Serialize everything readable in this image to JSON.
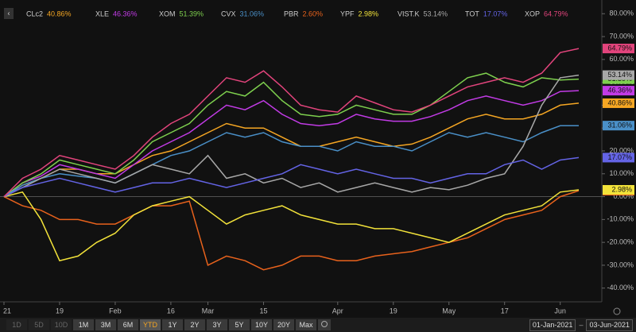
{
  "chart_data": {
    "type": "line",
    "categories": [
      "21",
      null,
      null,
      "19",
      null,
      null,
      "Feb",
      null,
      null,
      "16",
      null,
      "Mar",
      null,
      null,
      "15",
      null,
      null,
      null,
      "Apr",
      null,
      null,
      "19",
      null,
      null,
      "May",
      null,
      null,
      "17",
      null,
      null,
      "Jun",
      null
    ],
    "ylim": [
      -46,
      86
    ],
    "yticks": [
      {
        "value": 80,
        "label": "80.00%"
      },
      {
        "value": 70,
        "label": "70.00%"
      },
      {
        "value": 60,
        "label": "60.00%"
      },
      {
        "value": 50,
        "label": "50.00%"
      },
      {
        "value": 40,
        "label": "40.00%"
      },
      {
        "value": 30,
        "label": "30.00%"
      },
      {
        "value": 20,
        "label": "20.00%"
      },
      {
        "value": 10,
        "label": "10.00%"
      },
      {
        "value": 0,
        "label": "0.00%"
      },
      {
        "value": -10,
        "label": "-10.00%"
      },
      {
        "value": -20,
        "label": "-20.00%"
      },
      {
        "value": -30,
        "label": "-30.00%"
      },
      {
        "value": -40,
        "label": "-40.00%"
      }
    ],
    "series": [
      {
        "name": "CLc2",
        "color": "#f5a623",
        "values": [
          0,
          5,
          8,
          12,
          12,
          10,
          10,
          14,
          18,
          20,
          24,
          28,
          32,
          30,
          30,
          26,
          22,
          22,
          24,
          26,
          24,
          22,
          23,
          26,
          30,
          34,
          36,
          34,
          34,
          36,
          40,
          40.86
        ],
        "value_labels": [
          null,
          null,
          null,
          null,
          null,
          null,
          null,
          null,
          null,
          null,
          null,
          null,
          null,
          null,
          null,
          null,
          null,
          null,
          null,
          null,
          null,
          null,
          null,
          null,
          null,
          null,
          null,
          null,
          null,
          null,
          null,
          "40.86%"
        ]
      },
      {
        "name": "XLE",
        "color": "#c23be6",
        "values": [
          0,
          6,
          9,
          14,
          12,
          10,
          8,
          14,
          20,
          24,
          28,
          34,
          40,
          38,
          42,
          36,
          32,
          31,
          32,
          36,
          34,
          33,
          33,
          35,
          38,
          42,
          44,
          42,
          40,
          42,
          46,
          46.36
        ],
        "value_labels": [
          null,
          null,
          null,
          null,
          null,
          null,
          null,
          null,
          null,
          null,
          null,
          null,
          null,
          null,
          null,
          null,
          null,
          null,
          null,
          null,
          null,
          null,
          null,
          null,
          null,
          null,
          null,
          null,
          null,
          null,
          null,
          "46.36%"
        ]
      },
      {
        "name": "XOM",
        "color": "#7ed04e",
        "values": [
          0,
          6,
          10,
          16,
          14,
          12,
          10,
          16,
          24,
          28,
          32,
          40,
          46,
          44,
          50,
          42,
          36,
          35,
          36,
          40,
          38,
          36,
          36,
          40,
          46,
          52,
          54,
          50,
          48,
          52,
          51,
          51.39
        ],
        "value_labels": [
          null,
          null,
          null,
          null,
          null,
          null,
          null,
          null,
          null,
          null,
          null,
          null,
          null,
          null,
          null,
          null,
          null,
          null,
          null,
          null,
          null,
          null,
          null,
          null,
          null,
          null,
          null,
          null,
          null,
          null,
          null,
          "51.39%"
        ]
      },
      {
        "name": "CVX",
        "color": "#4a90c8",
        "values": [
          0,
          5,
          8,
          10,
          9,
          8,
          6,
          10,
          14,
          18,
          20,
          24,
          28,
          26,
          28,
          24,
          22,
          22,
          20,
          24,
          22,
          22,
          20,
          24,
          28,
          26,
          28,
          26,
          24,
          28,
          31,
          31.06
        ],
        "value_labels": [
          null,
          null,
          null,
          null,
          null,
          null,
          null,
          null,
          null,
          null,
          null,
          null,
          null,
          null,
          null,
          null,
          null,
          null,
          null,
          null,
          null,
          null,
          null,
          null,
          null,
          null,
          null,
          null,
          null,
          null,
          null,
          "31.06%"
        ]
      },
      {
        "name": "PBR",
        "color": "#e8621c",
        "values": [
          0,
          -4,
          -6,
          -10,
          -10,
          -12,
          -12,
          -8,
          -4,
          -4,
          -2,
          -30,
          -26,
          -28,
          -32,
          -30,
          -26,
          -26,
          -28,
          -28,
          -26,
          -25,
          -24,
          -22,
          -20,
          -18,
          -14,
          -10,
          -8,
          -6,
          0,
          2.6
        ],
        "value_labels": [
          null,
          null,
          null,
          null,
          null,
          null,
          null,
          null,
          null,
          null,
          null,
          null,
          null,
          null,
          null,
          null,
          null,
          null,
          null,
          null,
          null,
          null,
          null,
          null,
          null,
          null,
          null,
          null,
          null,
          null,
          null,
          "2.60%"
        ]
      },
      {
        "name": "YPF",
        "color": "#f2e23a",
        "values": [
          0,
          2,
          -10,
          -28,
          -26,
          -20,
          -16,
          -8,
          -4,
          -2,
          0,
          -6,
          -12,
          -8,
          -6,
          -4,
          -8,
          -10,
          -12,
          -12,
          -14,
          -14,
          -16,
          -18,
          -20,
          -16,
          -12,
          -8,
          -6,
          -4,
          2,
          2.98
        ],
        "value_labels": [
          null,
          null,
          null,
          null,
          null,
          null,
          null,
          null,
          null,
          null,
          null,
          null,
          null,
          null,
          null,
          null,
          null,
          null,
          null,
          null,
          null,
          null,
          null,
          null,
          null,
          null,
          null,
          null,
          null,
          null,
          null,
          "2.98%"
        ]
      },
      {
        "name": "VIST.K",
        "color": "#a8a8a8",
        "values": [
          0,
          4,
          8,
          12,
          10,
          8,
          6,
          10,
          14,
          12,
          10,
          18,
          8,
          10,
          6,
          8,
          4,
          6,
          2,
          4,
          6,
          4,
          2,
          4,
          3,
          5,
          8,
          10,
          22,
          40,
          52,
          53.14
        ],
        "value_labels": [
          null,
          null,
          null,
          null,
          null,
          null,
          null,
          null,
          null,
          null,
          null,
          null,
          null,
          null,
          null,
          null,
          null,
          null,
          null,
          null,
          null,
          null,
          null,
          null,
          null,
          null,
          null,
          null,
          null,
          null,
          null,
          "53.14%"
        ]
      },
      {
        "name": "TOT",
        "color": "#6464e6",
        "values": [
          0,
          4,
          6,
          8,
          6,
          4,
          2,
          4,
          6,
          6,
          8,
          6,
          4,
          6,
          8,
          10,
          14,
          12,
          10,
          12,
          10,
          8,
          8,
          6,
          8,
          10,
          10,
          14,
          16,
          12,
          16,
          17.07
        ],
        "value_labels": [
          null,
          null,
          null,
          null,
          null,
          null,
          null,
          null,
          null,
          null,
          null,
          null,
          null,
          null,
          null,
          null,
          null,
          null,
          null,
          null,
          null,
          null,
          null,
          null,
          null,
          null,
          null,
          null,
          null,
          null,
          null,
          "17.07%"
        ]
      },
      {
        "name": "XOP",
        "color": "#e2447c",
        "values": [
          0,
          8,
          12,
          18,
          16,
          14,
          12,
          18,
          26,
          32,
          36,
          44,
          52,
          50,
          55,
          48,
          40,
          38,
          37,
          44,
          41,
          38,
          37,
          40,
          44,
          48,
          50,
          52,
          50,
          54,
          63,
          64.79
        ],
        "value_labels": [
          null,
          null,
          null,
          null,
          null,
          null,
          null,
          null,
          null,
          null,
          null,
          null,
          null,
          null,
          null,
          null,
          null,
          null,
          null,
          null,
          null,
          null,
          null,
          null,
          null,
          null,
          null,
          null,
          null,
          null,
          null,
          "64.79%"
        ]
      }
    ]
  },
  "toolbar": {
    "ranges": [
      "1D",
      "5D",
      "10D",
      "1M",
      "3M",
      "6M",
      "YTD",
      "1Y",
      "2Y",
      "3Y",
      "5Y",
      "10Y",
      "20Y",
      "Max"
    ],
    "active": "YTD",
    "disabled": [
      "1D",
      "5D",
      "10D"
    ],
    "date_from": "01-Jan-2021",
    "date_separator": "–",
    "date_to": "03-Jun-2021"
  }
}
